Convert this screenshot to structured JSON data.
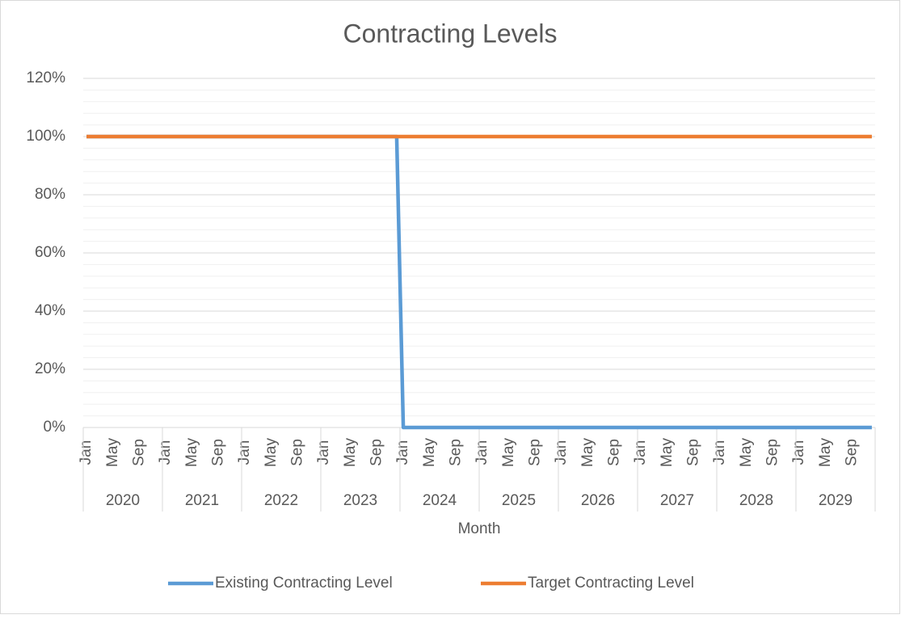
{
  "chart_data": {
    "type": "line",
    "title": "Contracting Levels",
    "x_label": "Month",
    "categories": [
      "Jan",
      null,
      null,
      null,
      "May",
      null,
      null,
      null,
      "Sep",
      null,
      null,
      null,
      "Jan",
      null,
      null,
      null,
      "May",
      null,
      null,
      null,
      "Sep",
      null,
      null,
      null,
      "Jan",
      null,
      null,
      null,
      "May",
      null,
      null,
      null,
      "Sep",
      null,
      null,
      null,
      "Jan",
      null,
      null,
      null,
      "May",
      null,
      null,
      null,
      "Sep",
      null,
      null,
      null,
      "Jan",
      null,
      null,
      null,
      "May",
      null,
      null,
      null,
      "Sep",
      null,
      null,
      null,
      "Jan",
      null,
      null,
      null,
      "May",
      null,
      null,
      null,
      "Sep",
      null,
      null,
      null,
      "Jan",
      null,
      null,
      null,
      "May",
      null,
      null,
      null,
      "Sep",
      null,
      null,
      null,
      "Jan",
      null,
      null,
      null,
      "May",
      null,
      null,
      null,
      "Sep",
      null,
      null,
      null,
      "Jan",
      null,
      null,
      null,
      "May",
      null,
      null,
      null,
      "Sep",
      null,
      null,
      null,
      "Jan",
      null,
      null,
      null,
      "May",
      null,
      null,
      null,
      "Sep",
      null,
      null,
      null
    ],
    "category_groups": [
      "2020",
      "2021",
      "2022",
      "2023",
      "2024",
      "2025",
      "2026",
      "2027",
      "2028",
      "2029"
    ],
    "series": [
      {
        "name": "Existing Contracting Level",
        "color": "#5b9bd5",
        "values": [
          100,
          100,
          100,
          100,
          100,
          100,
          100,
          100,
          100,
          100,
          100,
          100,
          100,
          100,
          100,
          100,
          100,
          100,
          100,
          100,
          100,
          100,
          100,
          100,
          100,
          100,
          100,
          100,
          100,
          100,
          100,
          100,
          100,
          100,
          100,
          100,
          100,
          100,
          100,
          100,
          100,
          100,
          100,
          100,
          100,
          100,
          100,
          100,
          0,
          0,
          0,
          0,
          0,
          0,
          0,
          0,
          0,
          0,
          0,
          0,
          0,
          0,
          0,
          0,
          0,
          0,
          0,
          0,
          0,
          0,
          0,
          0,
          0,
          0,
          0,
          0,
          0,
          0,
          0,
          0,
          0,
          0,
          0,
          0,
          0,
          0,
          0,
          0,
          0,
          0,
          0,
          0,
          0,
          0,
          0,
          0,
          0,
          0,
          0,
          0,
          0,
          0,
          0,
          0,
          0,
          0,
          0,
          0,
          0,
          0,
          0,
          0,
          0,
          0,
          0,
          0,
          0,
          0,
          0,
          0
        ]
      },
      {
        "name": "Target Contracting Level",
        "color": "#ed7d31",
        "values": [
          100,
          100,
          100,
          100,
          100,
          100,
          100,
          100,
          100,
          100,
          100,
          100,
          100,
          100,
          100,
          100,
          100,
          100,
          100,
          100,
          100,
          100,
          100,
          100,
          100,
          100,
          100,
          100,
          100,
          100,
          100,
          100,
          100,
          100,
          100,
          100,
          100,
          100,
          100,
          100,
          100,
          100,
          100,
          100,
          100,
          100,
          100,
          100,
          100,
          100,
          100,
          100,
          100,
          100,
          100,
          100,
          100,
          100,
          100,
          100,
          100,
          100,
          100,
          100,
          100,
          100,
          100,
          100,
          100,
          100,
          100,
          100,
          100,
          100,
          100,
          100,
          100,
          100,
          100,
          100,
          100,
          100,
          100,
          100,
          100,
          100,
          100,
          100,
          100,
          100,
          100,
          100,
          100,
          100,
          100,
          100,
          100,
          100,
          100,
          100,
          100,
          100,
          100,
          100,
          100,
          100,
          100,
          100,
          100,
          100,
          100,
          100,
          100,
          100,
          100,
          100,
          100,
          100,
          100,
          100
        ]
      }
    ],
    "ylim": [
      0,
      120
    ],
    "yticks": [
      {
        "value": 0,
        "label": "0%"
      },
      {
        "value": 20,
        "label": "20%"
      },
      {
        "value": 40,
        "label": "40%"
      },
      {
        "value": 60,
        "label": "60%"
      },
      {
        "value": 80,
        "label": "80%"
      },
      {
        "value": 100,
        "label": "100%"
      },
      {
        "value": 120,
        "label": "120%"
      }
    ],
    "minor_yticks": [
      4,
      8,
      12,
      16,
      24,
      28,
      32,
      36,
      44,
      48,
      52,
      56,
      64,
      68,
      72,
      76,
      84,
      88,
      92,
      96,
      104,
      108,
      112,
      116
    ],
    "grid": true,
    "legend": "bottom"
  }
}
